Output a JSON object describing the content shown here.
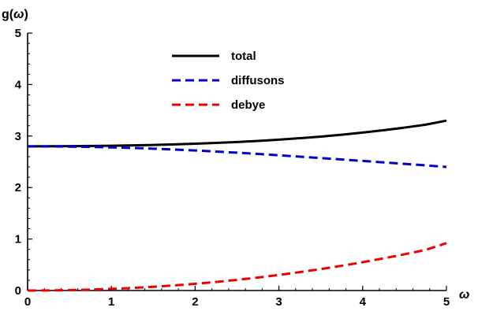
{
  "chart_data": {
    "type": "line",
    "title": "",
    "xlabel": "ω",
    "ylabel_prefix": "g(",
    "ylabel_var": "ω",
    "ylabel_suffix": ")",
    "xlim": [
      0,
      5
    ],
    "ylim": [
      0,
      5
    ],
    "x_ticks": [
      0,
      1,
      2,
      3,
      4,
      5
    ],
    "y_ticks": [
      0,
      1,
      2,
      3,
      4,
      5
    ],
    "x_minor_step": 0.2,
    "y_minor_step": 0.2,
    "grid": false,
    "legend_placement": "top-center",
    "x": [
      0,
      0.25,
      0.5,
      0.75,
      1,
      1.25,
      1.5,
      1.75,
      2,
      2.25,
      2.5,
      2.75,
      3,
      3.25,
      3.5,
      3.75,
      4,
      4.25,
      4.5,
      4.75,
      5
    ],
    "series": [
      {
        "name": "total",
        "color": "#000000",
        "dash": "solid",
        "values": [
          2.8,
          2.801,
          2.803,
          2.807,
          2.812,
          2.819,
          2.827,
          2.838,
          2.851,
          2.866,
          2.884,
          2.905,
          2.93,
          2.958,
          2.99,
          3.026,
          3.067,
          3.113,
          3.164,
          3.221,
          3.3
        ]
      },
      {
        "name": "diffusons",
        "color": "#0000cc",
        "dash": "dashed",
        "values": [
          2.8,
          2.799,
          2.795,
          2.789,
          2.78,
          2.769,
          2.755,
          2.738,
          2.72,
          2.699,
          2.677,
          2.653,
          2.627,
          2.6,
          2.573,
          2.545,
          2.517,
          2.488,
          2.46,
          2.432,
          2.4
        ]
      },
      {
        "name": "debye",
        "color": "#ee0000",
        "dash": "dashed",
        "values": [
          0,
          0.002,
          0.008,
          0.018,
          0.032,
          0.05,
          0.072,
          0.1,
          0.13,
          0.167,
          0.207,
          0.252,
          0.303,
          0.358,
          0.417,
          0.481,
          0.55,
          0.625,
          0.704,
          0.789,
          0.92
        ]
      }
    ]
  }
}
